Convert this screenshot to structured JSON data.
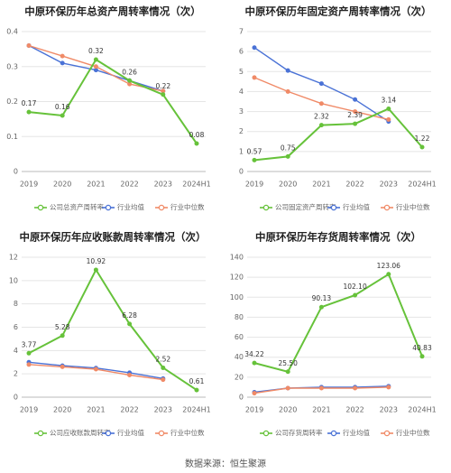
{
  "colors": {
    "company": "#66c23a",
    "industry_avg": "#4a72d6",
    "industry_median": "#f08a67",
    "axis_text": "#666666",
    "grid": "#e5e5e5",
    "label": "#333333"
  },
  "source": "数据来源：恒生聚源",
  "chart_data": [
    {
      "type": "line",
      "title": "中原环保历年总资产周转率情况（次）",
      "categories": [
        "2019",
        "2020",
        "2021",
        "2022",
        "2023",
        "2024H1"
      ],
      "ylim": [
        0,
        0.4
      ],
      "yticks": [
        "0",
        "0.1",
        "0.2",
        "0.3",
        "0.4"
      ],
      "grid": true,
      "legend_position": "bottom",
      "series": [
        {
          "name": "公司总资产周转率",
          "role": "company",
          "values": [
            0.17,
            0.16,
            0.32,
            0.26,
            0.22,
            0.08
          ],
          "labels": [
            "0.17",
            "0.16",
            "0.32",
            "0.26",
            "0.22",
            "0.08"
          ]
        },
        {
          "name": "行业均值",
          "role": "industry_avg",
          "values": [
            0.36,
            0.31,
            0.29,
            0.26,
            0.23,
            null
          ]
        },
        {
          "name": "行业中位数",
          "role": "industry_median",
          "values": [
            0.36,
            0.33,
            0.3,
            0.25,
            0.23,
            null
          ]
        }
      ]
    },
    {
      "type": "line",
      "title": "中原环保历年固定资产周转率情况（次）",
      "categories": [
        "2019",
        "2020",
        "2021",
        "2022",
        "2023",
        "2024H1"
      ],
      "ylim": [
        0,
        7
      ],
      "yticks": [
        "0",
        "1",
        "2",
        "3",
        "4",
        "5",
        "6",
        "7"
      ],
      "grid": true,
      "legend_position": "bottom",
      "series": [
        {
          "name": "公司固定资产周转率",
          "role": "company",
          "values": [
            0.57,
            0.75,
            2.32,
            2.39,
            3.14,
            1.22
          ],
          "labels": [
            "0.57",
            "0.75",
            "2.32",
            "2.39",
            "3.14",
            "1.22"
          ]
        },
        {
          "name": "行业均值",
          "role": "industry_avg",
          "values": [
            6.2,
            5.05,
            4.4,
            3.6,
            2.5,
            null
          ]
        },
        {
          "name": "行业中位数",
          "role": "industry_median",
          "values": [
            4.7,
            4.0,
            3.4,
            3.0,
            2.6,
            null
          ]
        }
      ]
    },
    {
      "type": "line",
      "title": "中原环保历年应收账款周转率情况（次）",
      "categories": [
        "2019",
        "2020",
        "2021",
        "2022",
        "2023",
        "2024H1"
      ],
      "ylim": [
        0,
        12
      ],
      "yticks": [
        "0",
        "2",
        "4",
        "6",
        "8",
        "10",
        "12"
      ],
      "grid": true,
      "legend_position": "bottom",
      "series": [
        {
          "name": "公司应收账款周转率",
          "role": "company",
          "values": [
            3.77,
            5.28,
            10.92,
            6.28,
            2.52,
            0.61
          ],
          "labels": [
            "3.77",
            "5.28",
            "10.92",
            "6.28",
            "2.52",
            "0.61"
          ]
        },
        {
          "name": "行业均值",
          "role": "industry_avg",
          "values": [
            3.0,
            2.7,
            2.5,
            2.1,
            1.6,
            null
          ]
        },
        {
          "name": "行业中位数",
          "role": "industry_median",
          "values": [
            2.8,
            2.6,
            2.4,
            1.9,
            1.5,
            null
          ]
        }
      ]
    },
    {
      "type": "line",
      "title": "中原环保历年存货周转率情况（次）",
      "categories": [
        "2019",
        "2020",
        "2021",
        "2022",
        "2023",
        "2024H1"
      ],
      "ylim": [
        0,
        140
      ],
      "yticks": [
        "0",
        "20",
        "40",
        "60",
        "80",
        "100",
        "120",
        "140"
      ],
      "grid": true,
      "legend_position": "bottom",
      "series": [
        {
          "name": "公司存货周转率",
          "role": "company",
          "values": [
            34.22,
            25.5,
            90.13,
            102.1,
            123.06,
            40.83
          ],
          "labels": [
            "34.22",
            "25.50",
            "90.13",
            "102.10",
            "123.06",
            "40.83"
          ]
        },
        {
          "name": "行业均值",
          "role": "industry_avg",
          "values": [
            5,
            9,
            10,
            10,
            11,
            null
          ]
        },
        {
          "name": "行业中位数",
          "role": "industry_median",
          "values": [
            4,
            9,
            9,
            9,
            10,
            null
          ]
        }
      ]
    }
  ]
}
